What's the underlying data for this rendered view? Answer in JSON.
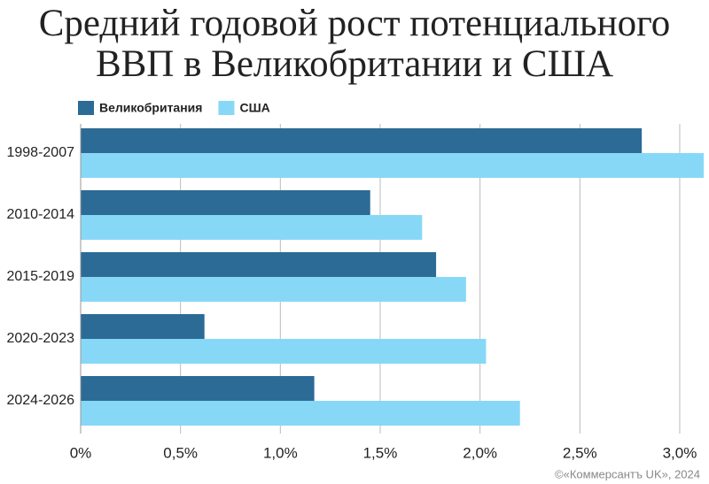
{
  "chart_data": {
    "type": "hbar",
    "title": "Средний годовой рост потенциального ВВП в Великобритании и США",
    "source": "©«Коммерсантъ UK», 2024",
    "categories": [
      "1998-2007",
      "2010-2014",
      "2015-2019",
      "2020-2023",
      "2024-2026"
    ],
    "series": [
      {
        "name": "Великобритания",
        "color": "#2b6b96",
        "values": [
          2.81,
          1.45,
          1.78,
          0.62,
          1.17
        ]
      },
      {
        "name": "США",
        "color": "#87d8f7",
        "values": [
          3.12,
          1.71,
          1.93,
          2.03,
          2.2
        ]
      }
    ],
    "xlim": [
      0,
      3.12
    ],
    "xticks": [
      {
        "value": 0,
        "label": "0%"
      },
      {
        "value": 0.5,
        "label": "0,5%"
      },
      {
        "value": 1,
        "label": "1,0%"
      },
      {
        "value": 1.5,
        "label": "1,5%"
      },
      {
        "value": 2,
        "label": "2,0%"
      },
      {
        "value": 2.5,
        "label": "2,5%"
      },
      {
        "value": 3,
        "label": "3,0%"
      }
    ],
    "grid": true
  }
}
